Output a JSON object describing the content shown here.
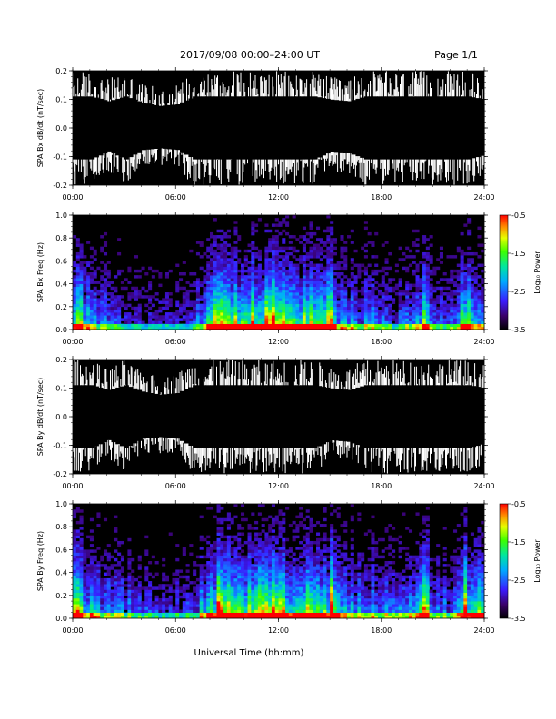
{
  "header": {
    "title": "2017/09/08  00:00–24:00 UT",
    "page": "Page 1/1"
  },
  "colors": {
    "background": "#ffffff",
    "plot": "#000000",
    "trace": "#ffffff"
  },
  "xlabel": "Universal Time (hh:mm)",
  "chart_data": [
    {
      "type": "line",
      "ylabel": "SPA Bx dB/dt (nT/sec)",
      "xlim": [
        0,
        24
      ],
      "ylim": [
        -0.2,
        0.2
      ],
      "x_ticks": [
        "00:00",
        "06:00",
        "12:00",
        "18:00",
        "24:00"
      ],
      "y_ticks": [
        "-0.2",
        "-0.1",
        "0.0",
        "0.1",
        "0.2"
      ],
      "series": [
        {
          "x": [
            0,
            1,
            2,
            3,
            4,
            5,
            6,
            7,
            8,
            9,
            10,
            11,
            12,
            13,
            14,
            15,
            16,
            17,
            18,
            19,
            20,
            21,
            22,
            23,
            24
          ],
          "envelope_max": [
            0.2,
            0.2,
            0.17,
            0.2,
            0.16,
            0.14,
            0.15,
            0.2,
            0.2,
            0.2,
            0.2,
            0.2,
            0.2,
            0.2,
            0.2,
            0.18,
            0.17,
            0.2,
            0.2,
            0.2,
            0.2,
            0.2,
            0.2,
            0.2,
            0.18
          ],
          "envelope_min": [
            -0.2,
            -0.2,
            -0.15,
            -0.2,
            -0.14,
            -0.13,
            -0.14,
            -0.2,
            -0.2,
            -0.2,
            -0.2,
            -0.2,
            -0.2,
            -0.2,
            -0.2,
            -0.15,
            -0.16,
            -0.2,
            -0.2,
            -0.2,
            -0.2,
            -0.2,
            -0.2,
            -0.2,
            -0.17
          ]
        }
      ]
    },
    {
      "type": "heatmap",
      "ylabel": "SPA Bx Freq (Hz)",
      "xlim": [
        0,
        24
      ],
      "ylim": [
        0,
        1.0
      ],
      "x_ticks": [
        "00:00",
        "06:00",
        "12:00",
        "18:00",
        "24:00"
      ],
      "y_ticks": [
        "0.0",
        "0.2",
        "0.4",
        "0.6",
        "0.8",
        "1.0"
      ],
      "colorbar": {
        "label": "Log₁₀ Power",
        "range": [
          -3.5,
          -0.5
        ],
        "ticks": [
          "-0.5",
          "-1.5",
          "-2.5",
          "-3.5"
        ]
      },
      "activity_by_hour": [
        0.55,
        0.45,
        0.35,
        0.3,
        0.25,
        0.2,
        0.2,
        0.25,
        0.7,
        0.75,
        0.8,
        0.85,
        0.8,
        0.75,
        0.7,
        0.6,
        0.45,
        0.4,
        0.35,
        0.3,
        0.55,
        0.35,
        0.3,
        0.6
      ],
      "hotspots_utc": [
        0.2,
        8.5,
        11.5,
        15.0,
        20.5,
        22.8
      ]
    },
    {
      "type": "line",
      "ylabel": "SPA By dB/dt (nT/sec)",
      "xlim": [
        0,
        24
      ],
      "ylim": [
        -0.2,
        0.2
      ],
      "x_ticks": [
        "00:00",
        "06:00",
        "12:00",
        "18:00",
        "24:00"
      ],
      "y_ticks": [
        "-0.2",
        "-0.1",
        "0.0",
        "0.1",
        "0.2"
      ],
      "series": [
        {
          "x": [
            0,
            1,
            2,
            3,
            4,
            5,
            6,
            7,
            8,
            9,
            10,
            11,
            12,
            13,
            14,
            15,
            16,
            17,
            18,
            19,
            20,
            21,
            22,
            23,
            24
          ],
          "envelope_max": [
            0.2,
            0.2,
            0.17,
            0.2,
            0.16,
            0.14,
            0.15,
            0.2,
            0.2,
            0.2,
            0.2,
            0.2,
            0.2,
            0.2,
            0.2,
            0.18,
            0.17,
            0.2,
            0.2,
            0.2,
            0.2,
            0.2,
            0.2,
            0.2,
            0.18
          ],
          "envelope_min": [
            -0.2,
            -0.2,
            -0.15,
            -0.2,
            -0.14,
            -0.13,
            -0.14,
            -0.2,
            -0.2,
            -0.2,
            -0.2,
            -0.2,
            -0.2,
            -0.2,
            -0.2,
            -0.15,
            -0.16,
            -0.2,
            -0.2,
            -0.2,
            -0.2,
            -0.2,
            -0.2,
            -0.2,
            -0.17
          ]
        }
      ]
    },
    {
      "type": "heatmap",
      "ylabel": "SPA By Freq (Hz)",
      "xlim": [
        0,
        24
      ],
      "ylim": [
        0,
        1.0
      ],
      "x_ticks": [
        "00:00",
        "06:00",
        "12:00",
        "18:00",
        "24:00"
      ],
      "y_ticks": [
        "0.0",
        "0.2",
        "0.4",
        "0.6",
        "0.8",
        "1.0"
      ],
      "colorbar": {
        "label": "Log₁₀ Power",
        "range": [
          -3.5,
          -0.5
        ],
        "ticks": [
          "-0.5",
          "-1.5",
          "-2.5",
          "-3.5"
        ]
      },
      "activity_by_hour": [
        0.6,
        0.5,
        0.4,
        0.35,
        0.3,
        0.25,
        0.25,
        0.3,
        0.7,
        0.75,
        0.8,
        0.9,
        0.85,
        0.8,
        0.75,
        0.65,
        0.5,
        0.45,
        0.4,
        0.35,
        0.6,
        0.4,
        0.35,
        0.65
      ],
      "hotspots_utc": [
        0.2,
        8.5,
        11.5,
        15.0,
        20.5,
        22.8
      ]
    }
  ]
}
